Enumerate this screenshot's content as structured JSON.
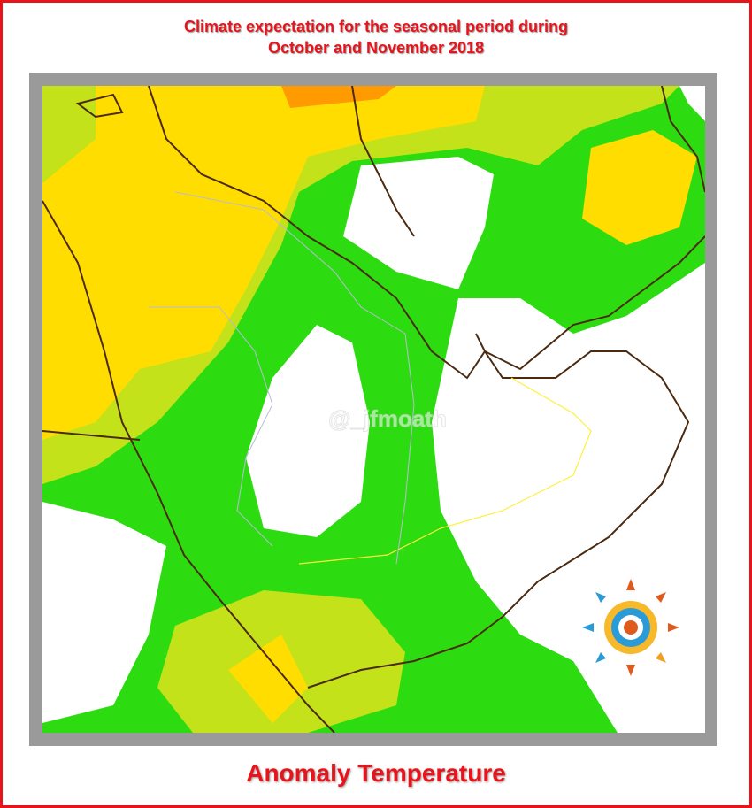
{
  "header": {
    "title_line1": "Climate expectation for the seasonal period during",
    "title_line2": "October and November 2018"
  },
  "map": {
    "watermark": "@_jfmoath"
  },
  "footer": {
    "caption": "Anomaly Temperature"
  }
}
